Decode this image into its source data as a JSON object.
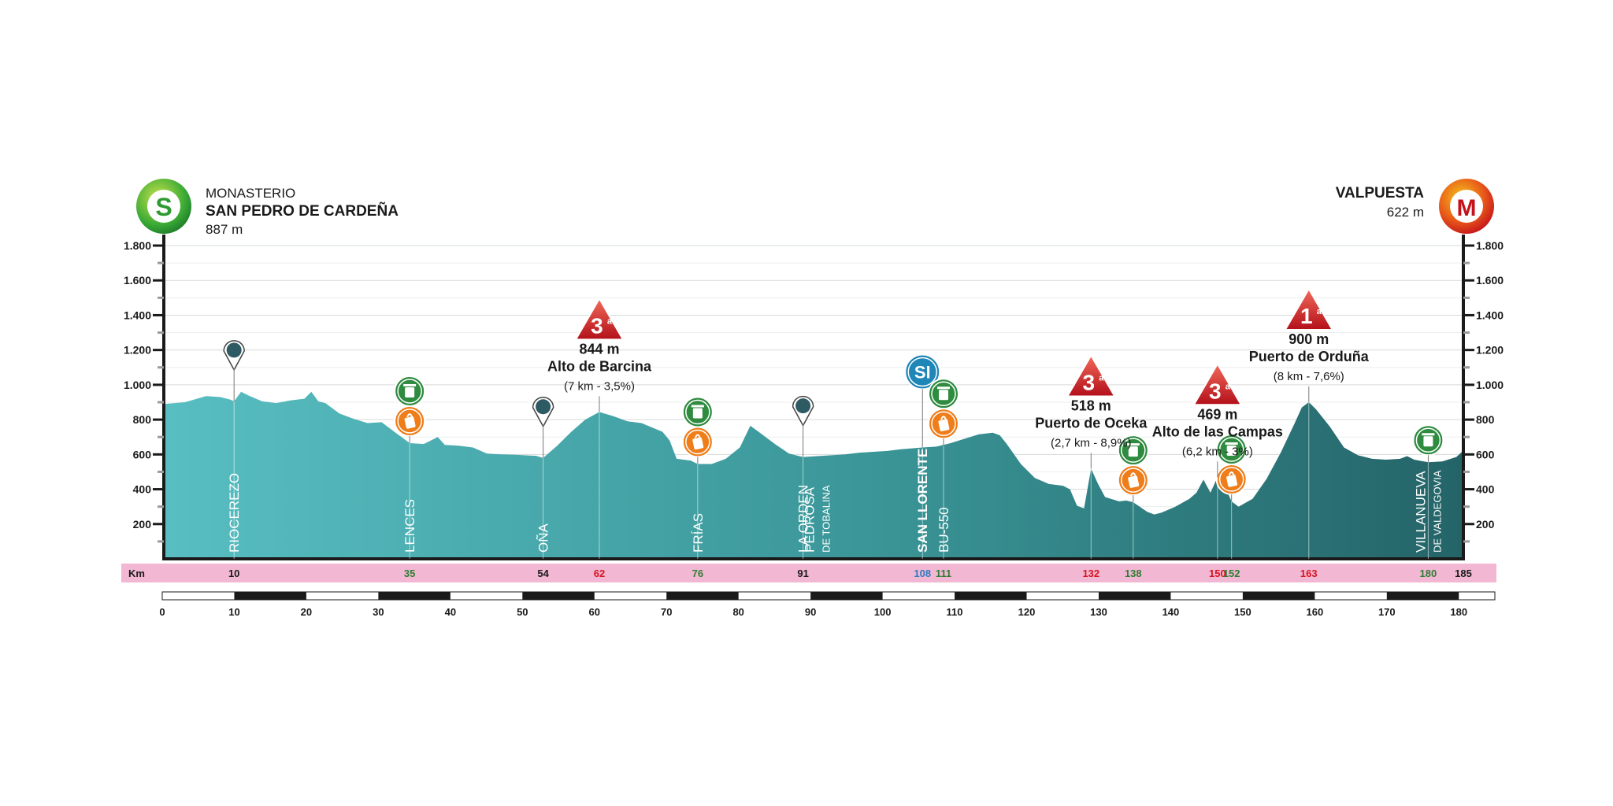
{
  "chart_data": {
    "type": "area",
    "title": "",
    "xlabel": "Km",
    "ylabel": "",
    "xlim": [
      0,
      185
    ],
    "ylim": [
      0,
      1800
    ],
    "y_ticks": [
      200,
      400,
      600,
      800,
      1000,
      1200,
      1400,
      1600,
      1800
    ],
    "y_tick_labels": [
      "200",
      "400",
      "600",
      "800",
      "1.000",
      "1.200",
      "1.400",
      "1.600",
      "1.800"
    ],
    "x_ticks": [
      0,
      10,
      20,
      30,
      40,
      50,
      60,
      70,
      80,
      90,
      100,
      110,
      120,
      130,
      140,
      150,
      160,
      170,
      180
    ],
    "grid": true,
    "profile": [
      [
        0,
        890
      ],
      [
        3,
        900
      ],
      [
        6,
        935
      ],
      [
        8,
        930
      ],
      [
        9.5,
        915
      ],
      [
        10,
        905
      ],
      [
        11,
        960
      ],
      [
        12,
        940
      ],
      [
        14,
        905
      ],
      [
        16,
        895
      ],
      [
        18,
        910
      ],
      [
        20,
        920
      ],
      [
        21,
        960
      ],
      [
        22,
        905
      ],
      [
        23,
        895
      ],
      [
        25,
        835
      ],
      [
        27,
        805
      ],
      [
        29,
        780
      ],
      [
        31,
        785
      ],
      [
        33,
        725
      ],
      [
        35,
        665
      ],
      [
        37,
        660
      ],
      [
        39,
        700
      ],
      [
        40,
        655
      ],
      [
        42,
        650
      ],
      [
        44,
        640
      ],
      [
        46,
        605
      ],
      [
        48,
        600
      ],
      [
        50,
        598
      ],
      [
        53,
        592
      ],
      [
        54,
        580
      ],
      [
        56,
        650
      ],
      [
        58,
        730
      ],
      [
        60,
        800
      ],
      [
        62,
        844
      ],
      [
        64,
        820
      ],
      [
        66,
        790
      ],
      [
        68,
        780
      ],
      [
        71,
        730
      ],
      [
        72,
        680
      ],
      [
        73,
        575
      ],
      [
        75,
        565
      ],
      [
        76,
        545
      ],
      [
        78,
        545
      ],
      [
        80,
        575
      ],
      [
        82,
        640
      ],
      [
        83.5,
        765
      ],
      [
        85,
        720
      ],
      [
        87,
        660
      ],
      [
        89,
        605
      ],
      [
        91,
        585
      ],
      [
        93,
        590
      ],
      [
        95,
        595
      ],
      [
        97,
        600
      ],
      [
        99,
        610
      ],
      [
        101,
        615
      ],
      [
        103,
        620
      ],
      [
        105,
        630
      ],
      [
        106.5,
        635
      ],
      [
        108,
        640
      ],
      [
        110,
        645
      ],
      [
        112,
        665
      ],
      [
        114,
        690
      ],
      [
        116,
        715
      ],
      [
        118,
        725
      ],
      [
        119,
        710
      ],
      [
        120,
        660
      ],
      [
        122,
        545
      ],
      [
        124,
        465
      ],
      [
        126,
        430
      ],
      [
        128,
        420
      ],
      [
        129,
        400
      ],
      [
        130,
        305
      ],
      [
        131,
        290
      ],
      [
        132,
        518
      ],
      [
        133,
        430
      ],
      [
        134,
        355
      ],
      [
        136,
        330
      ],
      [
        137,
        335
      ],
      [
        138,
        325
      ],
      [
        140,
        270
      ],
      [
        141,
        255
      ],
      [
        142,
        265
      ],
      [
        144,
        300
      ],
      [
        146,
        345
      ],
      [
        147,
        380
      ],
      [
        148,
        455
      ],
      [
        149,
        380
      ],
      [
        150,
        469
      ],
      [
        151,
        420
      ],
      [
        152,
        330
      ],
      [
        153,
        300
      ],
      [
        155,
        345
      ],
      [
        157,
        460
      ],
      [
        159,
        610
      ],
      [
        161,
        780
      ],
      [
        162,
        870
      ],
      [
        163,
        900
      ],
      [
        164,
        860
      ],
      [
        166,
        760
      ],
      [
        168,
        640
      ],
      [
        170,
        595
      ],
      [
        172,
        575
      ],
      [
        174,
        570
      ],
      [
        176,
        575
      ],
      [
        177,
        590
      ],
      [
        178,
        570
      ],
      [
        180,
        555
      ],
      [
        182,
        560
      ],
      [
        184,
        585
      ],
      [
        185,
        622
      ]
    ],
    "start": {
      "line1": "MONASTERIO",
      "line2": "SAN PEDRO DE CARDEÑA",
      "alt": "887 m",
      "badge": "S",
      "color": "#3aaa35"
    },
    "finish": {
      "line1": "VALPUESTA",
      "alt": "622 m",
      "badge": "M",
      "color": "#d8141f"
    },
    "places": [
      {
        "km": 10,
        "name": "RIOCEREZO",
        "alt": 905,
        "marker": "pin"
      },
      {
        "km": 35,
        "name": "LENCES",
        "alt": 665,
        "marker": "feed"
      },
      {
        "km": 54,
        "name": "OÑA",
        "alt": 580,
        "marker": "pin"
      },
      {
        "km": 76,
        "name": "FRÍAS",
        "alt": 545,
        "marker": "feed"
      },
      {
        "km": 91,
        "name": "LA ORDEN",
        "alt": 585,
        "marker": "pin"
      },
      {
        "km": 93,
        "name": "PEDROSA",
        "name2": "DE TOBALINA",
        "alt": 590,
        "marker": "none"
      },
      {
        "km": 108,
        "name": "SAN LLORENTE",
        "alt": 640,
        "marker": "sprint",
        "bold": true
      },
      {
        "km": 111,
        "name": "BU-550",
        "alt": 650,
        "marker": "feed"
      },
      {
        "km": 138,
        "name": "",
        "alt": 325,
        "marker": "feed"
      },
      {
        "km": 152,
        "name": "",
        "alt": 330,
        "marker": "feed"
      },
      {
        "km": 180,
        "name": "VILLANUEVA",
        "name2": "DE VALDEGOVIA",
        "alt": 555,
        "marker": "waste"
      }
    ],
    "climbs": [
      {
        "km": 62,
        "cat": "3",
        "sup": "a",
        "alt": "844 m",
        "name": "Alto de Barcina",
        "detail": "(7 km - 3,5%)"
      },
      {
        "km": 132,
        "cat": "3",
        "sup": "a",
        "alt": "518 m",
        "name": "Puerto de Oceka",
        "detail": "(2,7 km - 8,9%)"
      },
      {
        "km": 150,
        "cat": "3",
        "sup": "a",
        "alt": "469 m",
        "name": "Alto de las Campas",
        "detail": "(6,2 km - 3%)"
      },
      {
        "km": 163,
        "cat": "1",
        "sup": "a",
        "alt": "900 m",
        "name": "Puerto de Orduña",
        "detail": "(8 km - 7,6%)"
      }
    ],
    "km_strip": {
      "label": "Km",
      "items": [
        {
          "km": 10,
          "text": "10",
          "color": "#1a1a1a"
        },
        {
          "km": 35,
          "text": "35",
          "color": "#2f7d32"
        },
        {
          "km": 54,
          "text": "54",
          "color": "#1a1a1a"
        },
        {
          "km": 62,
          "text": "62",
          "color": "#d8141f"
        },
        {
          "km": 76,
          "text": "76",
          "color": "#2f7d32"
        },
        {
          "km": 91,
          "text": "91",
          "color": "#1a1a1a"
        },
        {
          "km": 108,
          "text": "108",
          "color": "#2e7bbf"
        },
        {
          "km": 111,
          "text": "111",
          "color": "#2f7d32"
        },
        {
          "km": 132,
          "text": "132",
          "color": "#d8141f"
        },
        {
          "km": 138,
          "text": "138",
          "color": "#2f7d32"
        },
        {
          "km": 150,
          "text": "150",
          "color": "#d8141f"
        },
        {
          "km": 152,
          "text": "152",
          "color": "#2f7d32"
        },
        {
          "km": 163,
          "text": "163",
          "color": "#d8141f"
        },
        {
          "km": 180,
          "text": "180",
          "color": "#2f7d32"
        },
        {
          "km": 185,
          "text": "185",
          "color": "#1a1a1a"
        }
      ]
    },
    "colors": {
      "fill_start": "#58bec2",
      "fill_end": "#246468",
      "strip": "#f2b7d3",
      "pin": "#2d5a63",
      "feed": "#ee7d1a",
      "waste": "#2e8b3f",
      "sprint": "#1f86b8",
      "climb": "#d8141f"
    }
  }
}
